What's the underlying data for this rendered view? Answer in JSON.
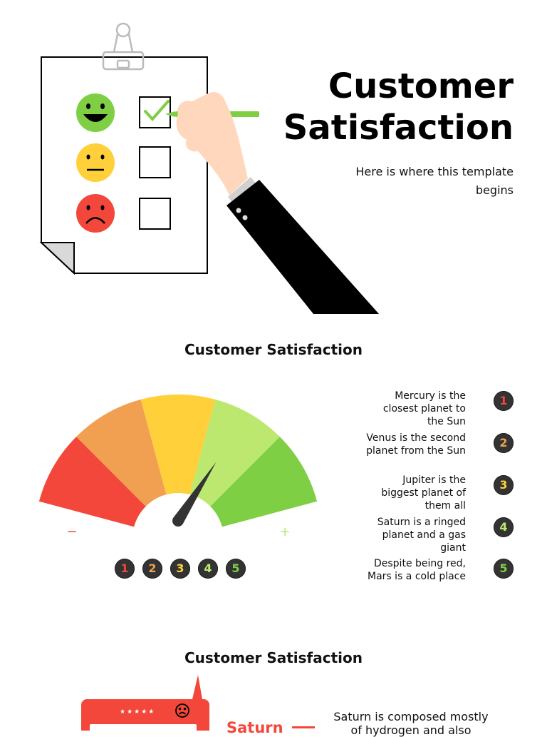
{
  "hero": {
    "title_line1": "Customer",
    "title_line2": "Satisfaction",
    "subtitle_line1": "Here is where this template",
    "subtitle_line2": "begins"
  },
  "gauge_section": {
    "title": "Customer Satisfaction",
    "minus_label": "−",
    "plus_label": "+",
    "level": 0.72,
    "numbers": [
      "1",
      "2",
      "3",
      "4",
      "5"
    ],
    "number_colors": [
      "#f2473a",
      "#f0a050",
      "#ffd03a",
      "#bde86f",
      "#7fcf45"
    ],
    "segment_colors": [
      "#f2473a",
      "#f0a050",
      "#ffd03a",
      "#bde86f",
      "#7fcf45"
    ],
    "items": [
      {
        "number": "1",
        "lines": [
          "Mercury is the",
          "closest planet to",
          "the Sun"
        ]
      },
      {
        "number": "2",
        "lines": [
          "Venus is the second",
          "planet from the Sun"
        ]
      },
      {
        "number": "3",
        "lines": [
          "Jupiter is the",
          "biggest planet of",
          "them all"
        ]
      },
      {
        "number": "4",
        "lines": [
          "Saturn is a ringed",
          "planet and a gas",
          "giant"
        ]
      },
      {
        "number": "5",
        "lines": [
          "Despite being red,",
          "Mars is a cold place"
        ]
      }
    ]
  },
  "review_section": {
    "title": "Customer Satisfaction",
    "stars": "★★★★★",
    "label": "Saturn",
    "description_line1": "Saturn is composed mostly",
    "description_line2": "of hydrogen and also",
    "icons": [
      "sad-face-icon"
    ]
  },
  "colors": {
    "happy": "#7fcf45",
    "neutral": "#ffd03a",
    "sad": "#f2473a",
    "checkmark": "#7fcf45",
    "pencil": "#7fcf45",
    "sleeve": "#000000",
    "skin": "#ffd7bd",
    "review_card": "#f2473a"
  }
}
